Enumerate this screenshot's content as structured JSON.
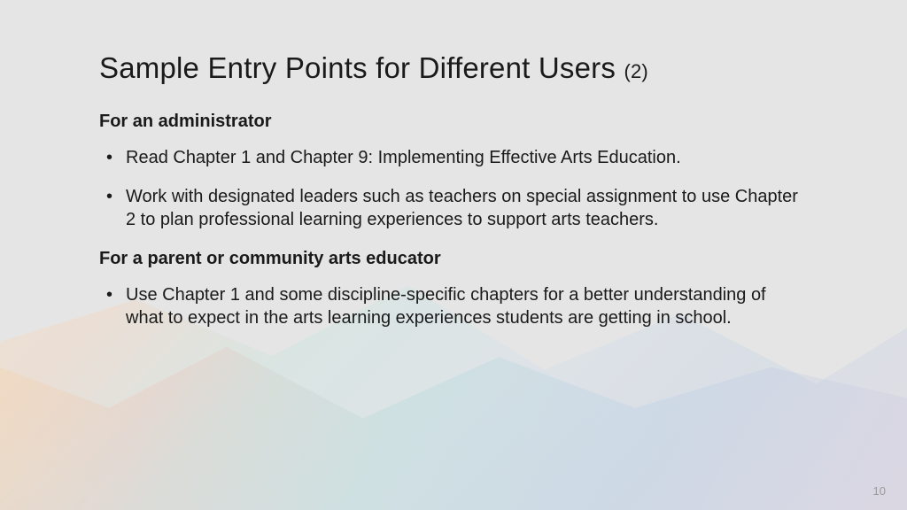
{
  "slide": {
    "title_main": "Sample Entry Points for Different Users ",
    "title_suffix": "(2)",
    "page_number": "10",
    "background_color": "#e5e5e5",
    "text_color": "#1a1a1a",
    "title_fontsize": 33,
    "body_fontsize": 20,
    "sections": [
      {
        "heading": "For an administrator",
        "bullets": [
          "Read Chapter 1 and Chapter 9: Implementing Effective Arts Education.",
          "Work with designated leaders such as teachers on special assignment to use Chapter 2 to plan professional learning experiences to support arts teachers."
        ]
      },
      {
        "heading": "For a parent or community arts educator",
        "bullets": [
          "Use Chapter 1 and some discipline-specific chapters for a better understanding of what to expect in the arts learning experiences students are getting in school."
        ]
      }
    ],
    "gradient_colors": [
      "#fde6b4",
      "#ffc8a0",
      "#b4e6dc",
      "#c8dcf0",
      "#b4c8e6",
      "#d2c8e1"
    ]
  }
}
